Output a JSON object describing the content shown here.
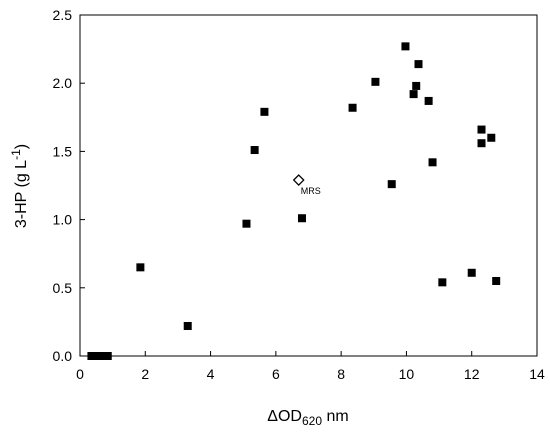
{
  "chart_data": {
    "type": "scatter",
    "xlabel": {
      "main": "ΔOD",
      "sub": "620",
      "unit": " nm"
    },
    "ylabel": {
      "main": "3-HP (g L",
      "sup": "-1",
      "end": ")"
    },
    "xlim": [
      0,
      14
    ],
    "ylim": [
      0,
      2.5
    ],
    "xticks": [
      "0",
      "2",
      "4",
      "6",
      "8",
      "10",
      "12",
      "14"
    ],
    "yticks": [
      "0.0",
      "0.5",
      "1.0",
      "1.5",
      "2.0",
      "2.5"
    ],
    "grid": false,
    "series": [
      {
        "marker": "filled-square",
        "color": "#000000",
        "points": [
          [
            0.35,
            0.0
          ],
          [
            0.45,
            0.0
          ],
          [
            0.55,
            0.0
          ],
          [
            0.65,
            0.0
          ],
          [
            0.75,
            0.0
          ],
          [
            0.85,
            0.0
          ],
          [
            1.85,
            0.65
          ],
          [
            3.3,
            0.22
          ],
          [
            5.1,
            0.97
          ],
          [
            5.35,
            1.51
          ],
          [
            5.65,
            1.79
          ],
          [
            6.8,
            1.01
          ],
          [
            8.35,
            1.82
          ],
          [
            9.05,
            2.01
          ],
          [
            9.55,
            1.26
          ],
          [
            9.97,
            2.27
          ],
          [
            10.22,
            1.92
          ],
          [
            10.3,
            1.98
          ],
          [
            10.37,
            2.14
          ],
          [
            10.68,
            1.87
          ],
          [
            10.8,
            1.42
          ],
          [
            11.1,
            0.54
          ],
          [
            12.0,
            0.61
          ],
          [
            12.3,
            1.66
          ],
          [
            12.3,
            1.56
          ],
          [
            12.6,
            1.6
          ],
          [
            12.75,
            0.55
          ]
        ]
      },
      {
        "marker": "open-diamond",
        "color": "#000000",
        "points": [
          [
            6.7,
            1.29
          ]
        ]
      }
    ],
    "annotations": [
      {
        "text": "MRS",
        "x": 6.7,
        "y": 1.29
      }
    ]
  }
}
